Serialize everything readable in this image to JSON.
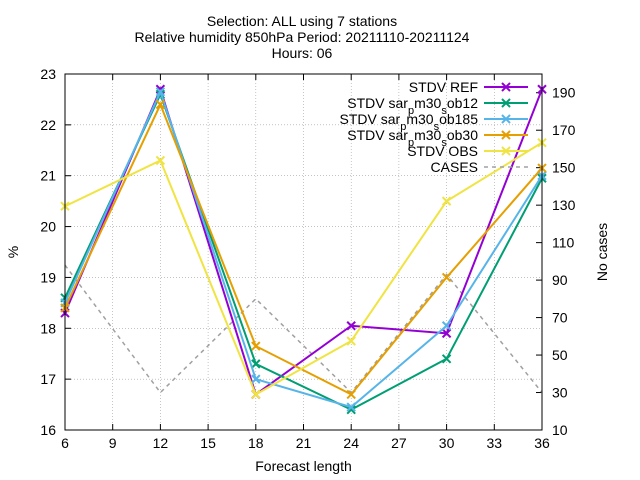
{
  "chart_data": {
    "type": "line",
    "title_lines": [
      "Selection: ALL using     7 stations",
      "Relative humidity 850hPa   Period: 20211110-20211124",
      "Hours: 06"
    ],
    "xlabel": "Forecast length",
    "ylabel": "%",
    "y2label": "No cases",
    "xlim": [
      6,
      36
    ],
    "ylim": [
      16,
      23
    ],
    "y2lim": [
      10,
      200
    ],
    "xticks": [
      "6",
      "9",
      "12",
      "15",
      "18",
      "21",
      "24",
      "27",
      "30",
      "33",
      "36"
    ],
    "yticks": [
      "16",
      "17",
      "18",
      "19",
      "20",
      "21",
      "22",
      "23"
    ],
    "y2ticks": [
      "10",
      "30",
      "50",
      "70",
      "90",
      "110",
      "130",
      "150",
      "170",
      "190"
    ],
    "grid": true,
    "legend_position": "top-right",
    "x": [
      6,
      12,
      18,
      24,
      30,
      36
    ],
    "series": [
      {
        "name": "STDV REF",
        "color": "#9400d3",
        "marker": "x",
        "axis": "y",
        "values": [
          18.3,
          22.7,
          16.7,
          18.05,
          17.9,
          22.7
        ]
      },
      {
        "name": "STDV sar_{p}m30_{s}ob12",
        "color": "#009e73",
        "marker": "x",
        "axis": "y",
        "values": [
          18.6,
          22.6,
          17.3,
          16.4,
          17.4,
          20.95
        ]
      },
      {
        "name": "STDV sar_{p}m30_{s}ob185",
        "color": "#56b4e9",
        "marker": "x",
        "axis": "y",
        "values": [
          18.5,
          22.65,
          17.0,
          16.45,
          18.05,
          21.0
        ]
      },
      {
        "name": "STDV sar_{p}m30_{s}ob30",
        "color": "#e69f00",
        "marker": "x",
        "axis": "y",
        "values": [
          18.4,
          22.4,
          17.65,
          16.7,
          19.0,
          21.15
        ]
      },
      {
        "name": "STDV OBS",
        "color": "#f0e442",
        "marker": "x",
        "axis": "y",
        "values": [
          20.4,
          21.3,
          16.7,
          17.75,
          20.5,
          21.65
        ]
      },
      {
        "name": "CASES",
        "color": "#a0a0a0",
        "marker": "none",
        "dash": true,
        "axis": "y2",
        "values": [
          98,
          30,
          80,
          30,
          93,
          30
        ]
      }
    ]
  }
}
